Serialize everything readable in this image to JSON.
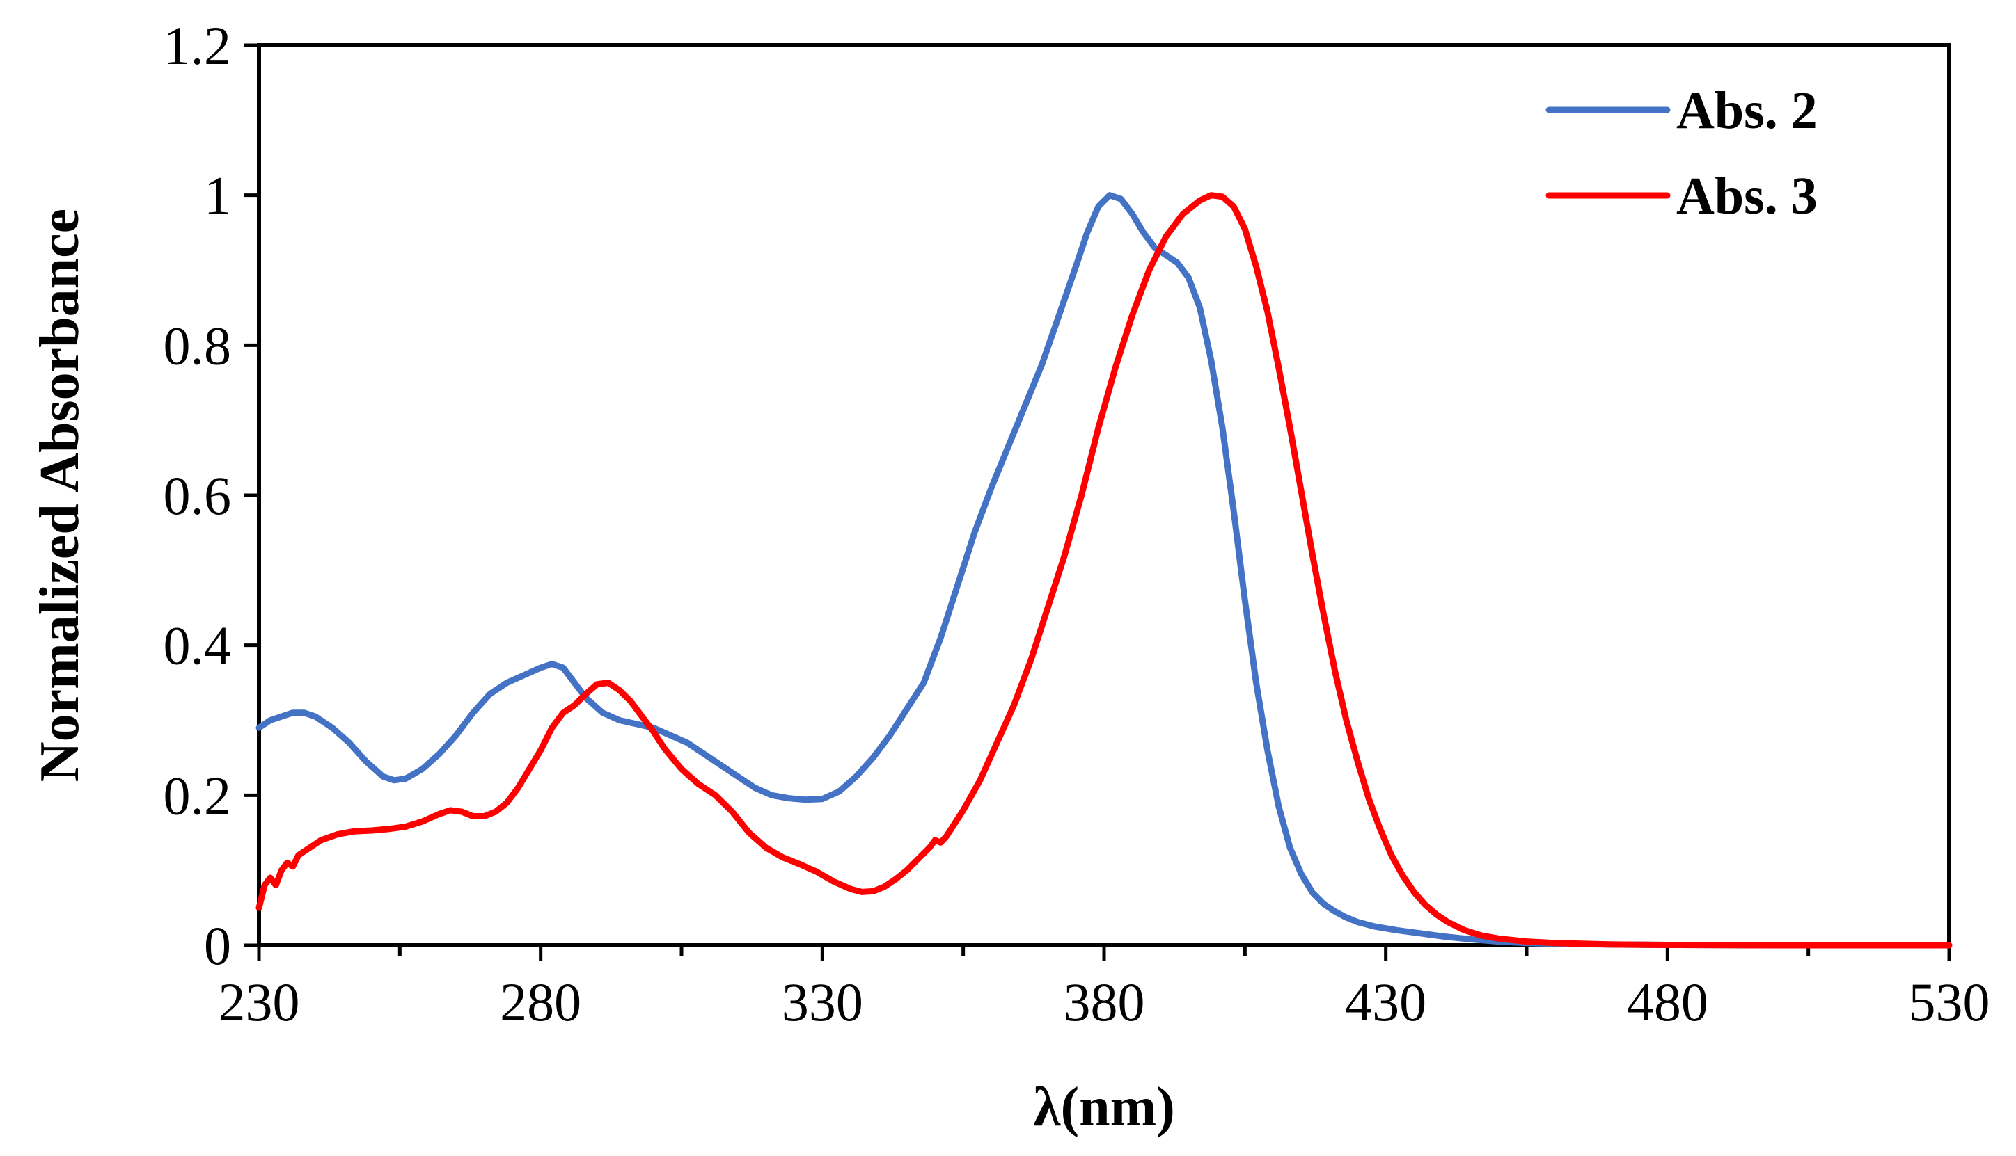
{
  "chart_data": {
    "type": "line",
    "title": "",
    "xlabel": "λ(nm)",
    "ylabel": "Normalized Absorbance",
    "xlim": [
      230,
      530
    ],
    "ylim": [
      0,
      1.2
    ],
    "x_ticks": [
      230,
      280,
      330,
      380,
      430,
      480,
      530
    ],
    "x_tick_labels": [
      "230",
      "280",
      "330",
      "380",
      "430",
      "480",
      "530"
    ],
    "x_minor_ticks": [
      255,
      305,
      355,
      405,
      455,
      505
    ],
    "y_ticks": [
      0,
      0.2,
      0.4,
      0.6,
      0.8,
      1,
      1.2
    ],
    "y_tick_labels": [
      "0",
      "0.2",
      "0.4",
      "0.6",
      "0.8",
      "1",
      "1.2"
    ],
    "grid": false,
    "legend_position": "top-right",
    "series": [
      {
        "name": "Abs. 2",
        "color": "#4472C4",
        "points": [
          [
            230,
            0.29
          ],
          [
            232,
            0.3
          ],
          [
            234,
            0.305
          ],
          [
            236,
            0.31
          ],
          [
            238,
            0.31
          ],
          [
            240,
            0.305
          ],
          [
            243,
            0.29
          ],
          [
            246,
            0.27
          ],
          [
            249,
            0.245
          ],
          [
            252,
            0.225
          ],
          [
            254,
            0.22
          ],
          [
            256,
            0.222
          ],
          [
            259,
            0.235
          ],
          [
            262,
            0.255
          ],
          [
            265,
            0.28
          ],
          [
            268,
            0.31
          ],
          [
            271,
            0.335
          ],
          [
            274,
            0.35
          ],
          [
            277,
            0.36
          ],
          [
            280,
            0.37
          ],
          [
            282,
            0.375
          ],
          [
            284,
            0.37
          ],
          [
            286,
            0.35
          ],
          [
            288,
            0.33
          ],
          [
            291,
            0.31
          ],
          [
            294,
            0.3
          ],
          [
            297,
            0.295
          ],
          [
            300,
            0.29
          ],
          [
            303,
            0.28
          ],
          [
            306,
            0.27
          ],
          [
            309,
            0.255
          ],
          [
            312,
            0.24
          ],
          [
            315,
            0.225
          ],
          [
            318,
            0.21
          ],
          [
            321,
            0.2
          ],
          [
            324,
            0.196
          ],
          [
            327,
            0.194
          ],
          [
            330,
            0.195
          ],
          [
            333,
            0.205
          ],
          [
            336,
            0.225
          ],
          [
            339,
            0.25
          ],
          [
            342,
            0.28
          ],
          [
            345,
            0.315
          ],
          [
            348,
            0.35
          ],
          [
            351,
            0.41
          ],
          [
            354,
            0.48
          ],
          [
            357,
            0.55
          ],
          [
            360,
            0.61
          ],
          [
            363,
            0.665
          ],
          [
            366,
            0.72
          ],
          [
            369,
            0.775
          ],
          [
            372,
            0.84
          ],
          [
            375,
            0.905
          ],
          [
            377,
            0.95
          ],
          [
            379,
            0.985
          ],
          [
            381,
            1.0
          ],
          [
            383,
            0.995
          ],
          [
            385,
            0.975
          ],
          [
            387,
            0.95
          ],
          [
            389,
            0.93
          ],
          [
            391,
            0.92
          ],
          [
            393,
            0.91
          ],
          [
            395,
            0.89
          ],
          [
            397,
            0.85
          ],
          [
            399,
            0.78
          ],
          [
            401,
            0.69
          ],
          [
            403,
            0.58
          ],
          [
            405,
            0.46
          ],
          [
            407,
            0.35
          ],
          [
            409,
            0.26
          ],
          [
            411,
            0.185
          ],
          [
            413,
            0.13
          ],
          [
            415,
            0.095
          ],
          [
            417,
            0.07
          ],
          [
            419,
            0.055
          ],
          [
            421,
            0.045
          ],
          [
            423,
            0.037
          ],
          [
            425,
            0.031
          ],
          [
            428,
            0.025
          ],
          [
            432,
            0.02
          ],
          [
            436,
            0.016
          ],
          [
            440,
            0.012
          ],
          [
            445,
            0.008
          ],
          [
            450,
            0.005
          ],
          [
            455,
            0.003
          ],
          [
            460,
            0.002
          ],
          [
            470,
            0.001
          ],
          [
            480,
            0.0005
          ],
          [
            500,
            0.0
          ],
          [
            530,
            0.0
          ]
        ]
      },
      {
        "name": "Abs. 3",
        "color": "#FF0000",
        "points": [
          [
            230,
            0.05
          ],
          [
            231,
            0.08
          ],
          [
            232,
            0.09
          ],
          [
            233,
            0.08
          ],
          [
            234,
            0.1
          ],
          [
            235,
            0.11
          ],
          [
            236,
            0.105
          ],
          [
            237,
            0.12
          ],
          [
            239,
            0.13
          ],
          [
            241,
            0.14
          ],
          [
            244,
            0.148
          ],
          [
            247,
            0.152
          ],
          [
            250,
            0.153
          ],
          [
            253,
            0.155
          ],
          [
            256,
            0.158
          ],
          [
            259,
            0.165
          ],
          [
            262,
            0.175
          ],
          [
            264,
            0.18
          ],
          [
            266,
            0.178
          ],
          [
            268,
            0.172
          ],
          [
            270,
            0.172
          ],
          [
            272,
            0.178
          ],
          [
            274,
            0.19
          ],
          [
            276,
            0.21
          ],
          [
            278,
            0.235
          ],
          [
            280,
            0.26
          ],
          [
            282,
            0.29
          ],
          [
            284,
            0.31
          ],
          [
            286,
            0.32
          ],
          [
            288,
            0.335
          ],
          [
            290,
            0.348
          ],
          [
            292,
            0.35
          ],
          [
            294,
            0.34
          ],
          [
            296,
            0.325
          ],
          [
            298,
            0.305
          ],
          [
            300,
            0.285
          ],
          [
            302,
            0.262
          ],
          [
            305,
            0.235
          ],
          [
            308,
            0.215
          ],
          [
            311,
            0.2
          ],
          [
            314,
            0.178
          ],
          [
            317,
            0.15
          ],
          [
            320,
            0.13
          ],
          [
            323,
            0.117
          ],
          [
            326,
            0.108
          ],
          [
            329,
            0.098
          ],
          [
            332,
            0.085
          ],
          [
            335,
            0.075
          ],
          [
            337,
            0.071
          ],
          [
            339,
            0.072
          ],
          [
            341,
            0.078
          ],
          [
            343,
            0.088
          ],
          [
            345,
            0.1
          ],
          [
            347,
            0.115
          ],
          [
            349,
            0.13
          ],
          [
            350,
            0.14
          ],
          [
            351,
            0.137
          ],
          [
            352,
            0.145
          ],
          [
            355,
            0.18
          ],
          [
            358,
            0.22
          ],
          [
            361,
            0.27
          ],
          [
            364,
            0.32
          ],
          [
            367,
            0.38
          ],
          [
            370,
            0.45
          ],
          [
            373,
            0.52
          ],
          [
            376,
            0.6
          ],
          [
            379,
            0.69
          ],
          [
            382,
            0.77
          ],
          [
            385,
            0.84
          ],
          [
            388,
            0.9
          ],
          [
            391,
            0.945
          ],
          [
            394,
            0.975
          ],
          [
            397,
            0.993
          ],
          [
            399,
            1.0
          ],
          [
            401,
            0.998
          ],
          [
            403,
            0.985
          ],
          [
            405,
            0.955
          ],
          [
            407,
            0.905
          ],
          [
            409,
            0.845
          ],
          [
            411,
            0.77
          ],
          [
            413,
            0.69
          ],
          [
            415,
            0.605
          ],
          [
            417,
            0.52
          ],
          [
            419,
            0.44
          ],
          [
            421,
            0.365
          ],
          [
            423,
            0.3
          ],
          [
            425,
            0.245
          ],
          [
            427,
            0.195
          ],
          [
            429,
            0.155
          ],
          [
            431,
            0.12
          ],
          [
            433,
            0.093
          ],
          [
            435,
            0.071
          ],
          [
            437,
            0.054
          ],
          [
            439,
            0.041
          ],
          [
            441,
            0.031
          ],
          [
            444,
            0.02
          ],
          [
            447,
            0.013
          ],
          [
            450,
            0.009
          ],
          [
            455,
            0.005
          ],
          [
            460,
            0.003
          ],
          [
            470,
            0.001
          ],
          [
            480,
            0.0005
          ],
          [
            500,
            0.0
          ],
          [
            530,
            0.0
          ]
        ]
      }
    ]
  }
}
